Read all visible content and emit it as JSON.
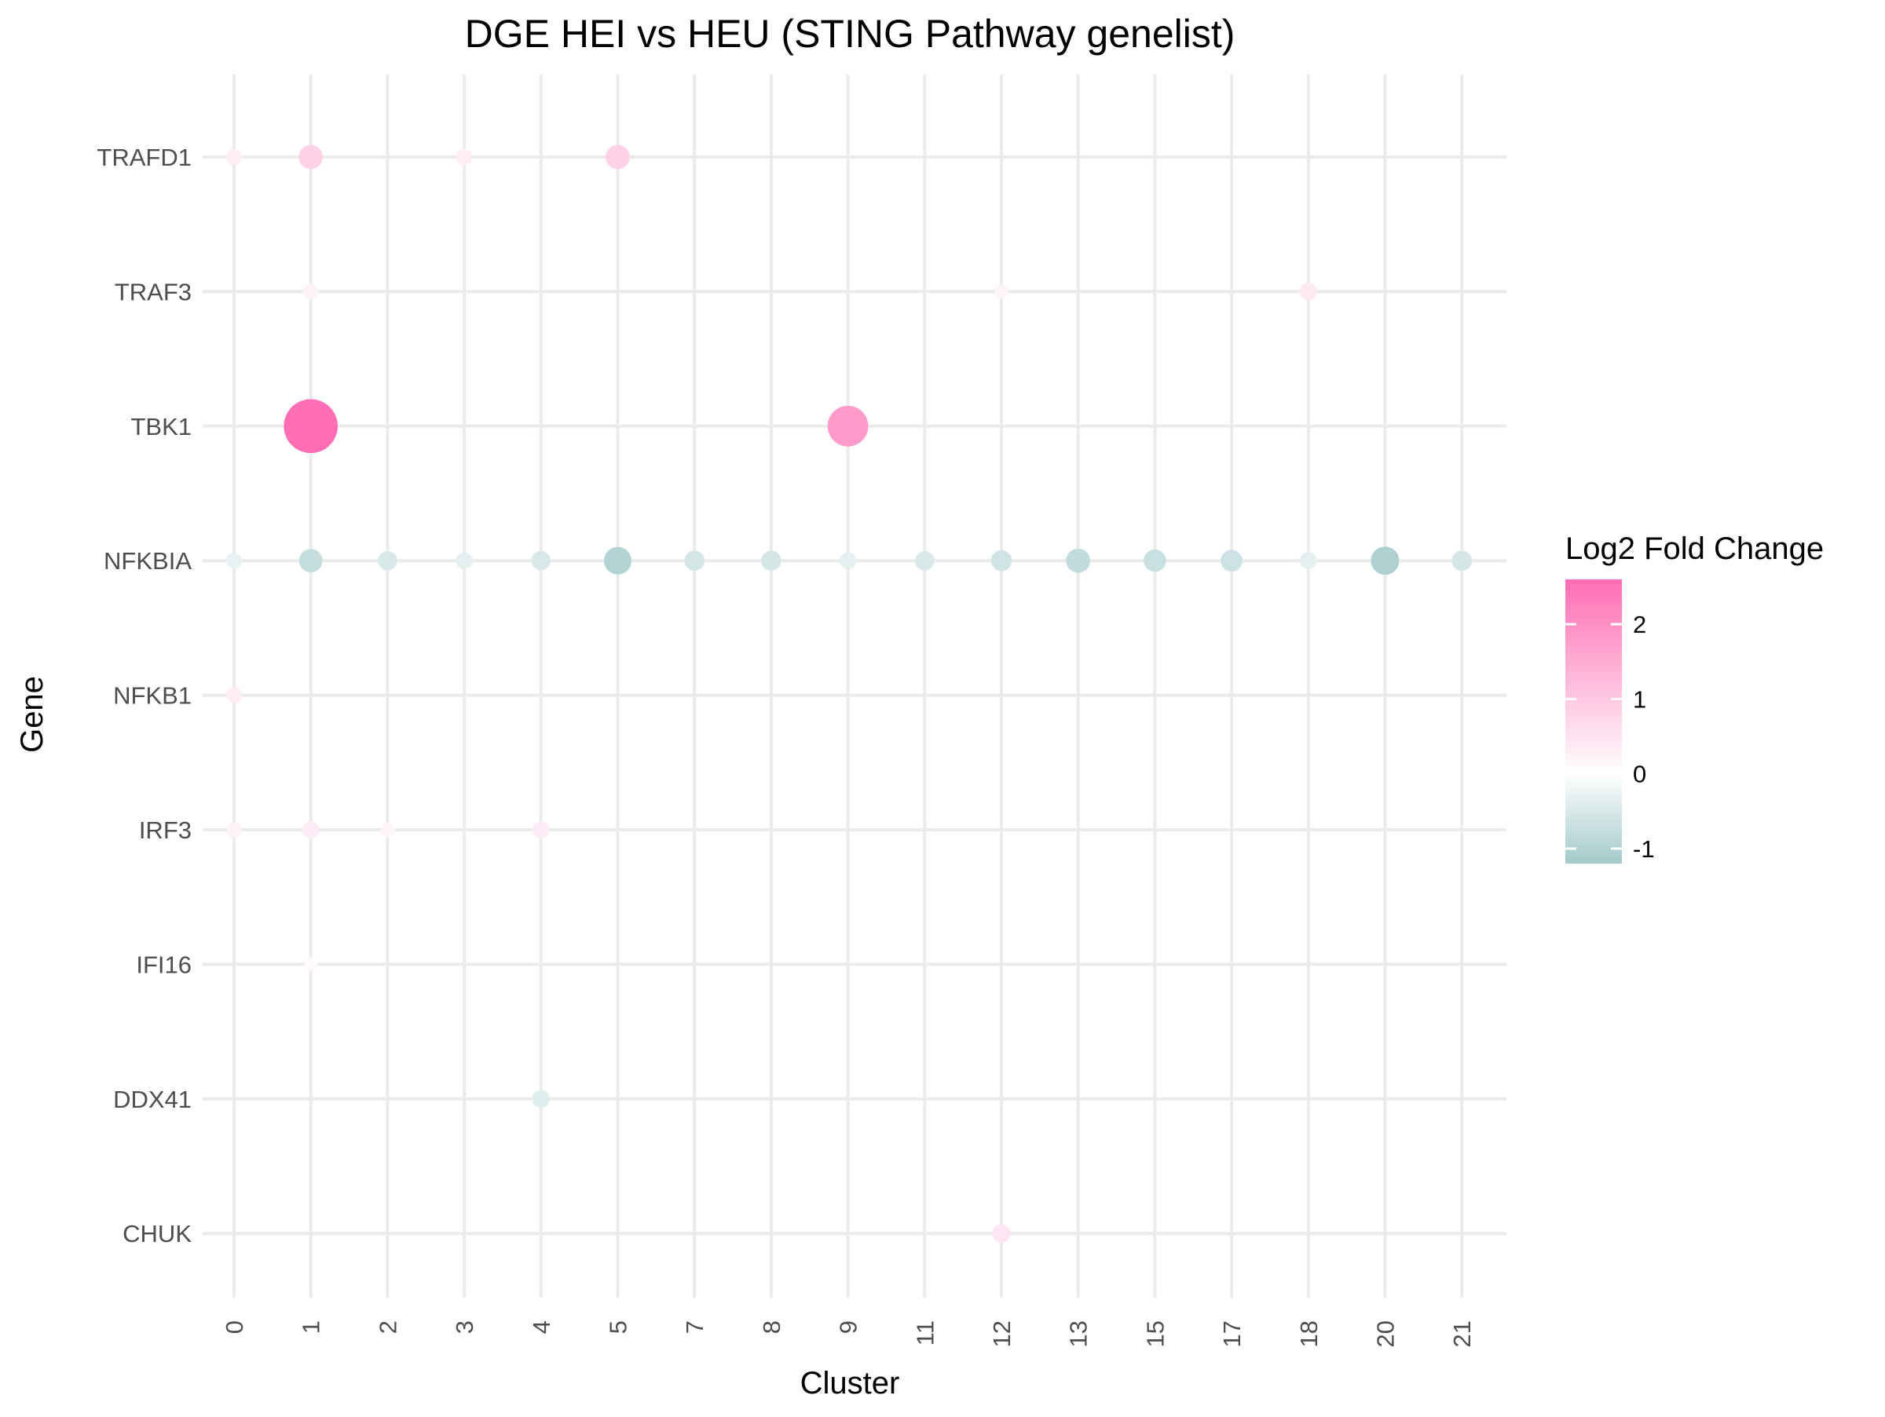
{
  "chart_data": {
    "type": "scatter",
    "title": "DGE HEI vs HEU (STING Pathway genelist)",
    "xlabel": "Cluster",
    "ylabel": "Gene",
    "x_categories": [
      "0",
      "1",
      "2",
      "3",
      "4",
      "5",
      "7",
      "8",
      "9",
      "11",
      "12",
      "13",
      "15",
      "17",
      "18",
      "20",
      "21"
    ],
    "y_categories": [
      "CHUK",
      "DDX41",
      "IFI16",
      "IRF3",
      "NFKB1",
      "NFKBIA",
      "TBK1",
      "TRAF3",
      "TRAFD1"
    ],
    "grid": true,
    "legend": {
      "title": "Log2 Fold Change",
      "position": "right",
      "ticks": [
        "2",
        "1",
        "0",
        "-1"
      ],
      "tick_values": [
        2,
        1,
        0,
        -1
      ],
      "range": [
        -1.2,
        2.6
      ],
      "color_low": "#a3c9ca",
      "color_mid": "#ffffff",
      "color_high": "#ff6eb4"
    },
    "points": [
      {
        "gene": "TRAFD1",
        "cluster": "0",
        "value": 0.3
      },
      {
        "gene": "TRAFD1",
        "cluster": "1",
        "value": 0.8
      },
      {
        "gene": "TRAFD1",
        "cluster": "3",
        "value": 0.3
      },
      {
        "gene": "TRAFD1",
        "cluster": "5",
        "value": 0.8
      },
      {
        "gene": "TRAF3",
        "cluster": "1",
        "value": 0.25
      },
      {
        "gene": "TRAF3",
        "cluster": "12",
        "value": 0.2
      },
      {
        "gene": "TRAF3",
        "cluster": "18",
        "value": 0.4
      },
      {
        "gene": "TBK1",
        "cluster": "1",
        "value": 2.6
      },
      {
        "gene": "TBK1",
        "cluster": "9",
        "value": 1.8
      },
      {
        "gene": "NFKBIA",
        "cluster": "0",
        "value": -0.3
      },
      {
        "gene": "NFKBIA",
        "cluster": "1",
        "value": -0.75
      },
      {
        "gene": "NFKBIA",
        "cluster": "2",
        "value": -0.5
      },
      {
        "gene": "NFKBIA",
        "cluster": "3",
        "value": -0.35
      },
      {
        "gene": "NFKBIA",
        "cluster": "4",
        "value": -0.5
      },
      {
        "gene": "NFKBIA",
        "cluster": "5",
        "value": -1.0
      },
      {
        "gene": "NFKBIA",
        "cluster": "7",
        "value": -0.55
      },
      {
        "gene": "NFKBIA",
        "cluster": "8",
        "value": -0.55
      },
      {
        "gene": "NFKBIA",
        "cluster": "9",
        "value": -0.35
      },
      {
        "gene": "NFKBIA",
        "cluster": "11",
        "value": -0.5
      },
      {
        "gene": "NFKBIA",
        "cluster": "12",
        "value": -0.6
      },
      {
        "gene": "NFKBIA",
        "cluster": "13",
        "value": -0.8
      },
      {
        "gene": "NFKBIA",
        "cluster": "15",
        "value": -0.7
      },
      {
        "gene": "NFKBIA",
        "cluster": "17",
        "value": -0.65
      },
      {
        "gene": "NFKBIA",
        "cluster": "18",
        "value": -0.35
      },
      {
        "gene": "NFKBIA",
        "cluster": "20",
        "value": -1.05
      },
      {
        "gene": "NFKBIA",
        "cluster": "21",
        "value": -0.55
      },
      {
        "gene": "NFKB1",
        "cluster": "0",
        "value": 0.3
      },
      {
        "gene": "IRF3",
        "cluster": "0",
        "value": 0.25
      },
      {
        "gene": "IRF3",
        "cluster": "1",
        "value": 0.35
      },
      {
        "gene": "IRF3",
        "cluster": "2",
        "value": 0.2
      },
      {
        "gene": "IRF3",
        "cluster": "4",
        "value": 0.35
      },
      {
        "gene": "IFI16",
        "cluster": "1",
        "value": 0.1
      },
      {
        "gene": "DDX41",
        "cluster": "4",
        "value": -0.4
      },
      {
        "gene": "CHUK",
        "cluster": "12",
        "value": 0.45
      }
    ]
  }
}
